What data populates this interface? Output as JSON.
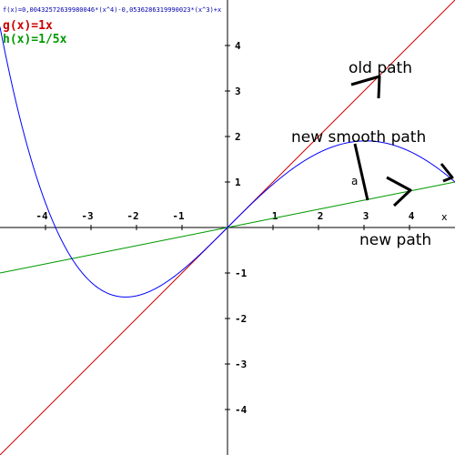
{
  "chart_data": {
    "type": "line",
    "xlim": [
      -5,
      5
    ],
    "ylim": [
      -5,
      5
    ],
    "grid": false,
    "x_ticks": [
      -4,
      -3,
      -2,
      -1,
      1,
      2,
      3,
      4
    ],
    "y_ticks": [
      4,
      3,
      2,
      1,
      -1,
      -2,
      -3,
      -4
    ],
    "xlabel": "x",
    "legend": [
      {
        "text": "f(x)=0,00432572639980046*(x^4)-0,0536286319990023*(x^3)+x",
        "color": "#0000aa"
      },
      {
        "text": "g(x)=1x",
        "color": "#cc0000"
      },
      {
        "text": "h(x)=1/5x",
        "color": "#009900"
      }
    ],
    "series": [
      {
        "name": "f(x)=0,00432572639980046*(x^4)-0,0536286319990023*(x^3)+x",
        "color": "#0000ff",
        "coeffs": {
          "a4": 0.00432572639980046,
          "a3": -0.0536286319990023,
          "a1": 1
        }
      },
      {
        "name": "g(x)=1x",
        "color": "#cc0000",
        "slope": 1
      },
      {
        "name": "h(x)=1/5x",
        "color": "#009900",
        "slope": 0.2
      }
    ],
    "annotations": [
      {
        "text": "old path"
      },
      {
        "text": "new smooth path"
      },
      {
        "text": "a"
      },
      {
        "text": "new path"
      }
    ]
  }
}
